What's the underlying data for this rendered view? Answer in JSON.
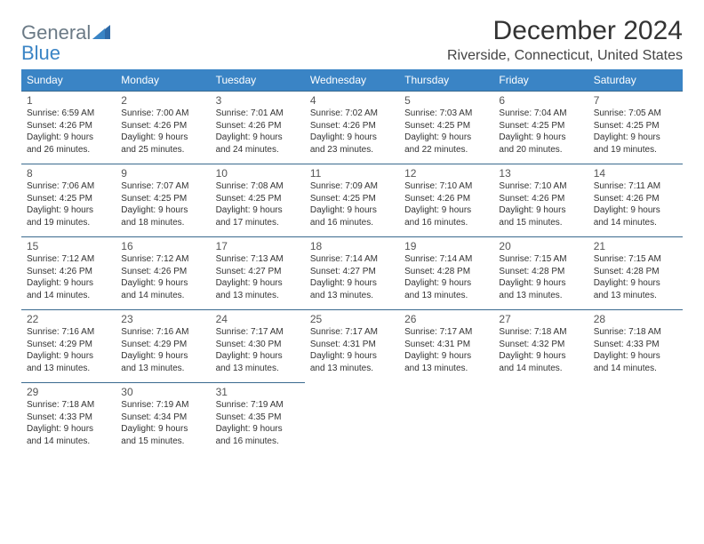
{
  "logo": {
    "text1": "General",
    "text2": "Blue"
  },
  "title": "December 2024",
  "location": "Riverside, Connecticut, United States",
  "colors": {
    "header_bg": "#3a84c5",
    "header_text": "#ffffff",
    "rule": "#3a6a8f",
    "logo_gray": "#6b7a86",
    "logo_blue": "#3a84c5"
  },
  "day_headers": [
    "Sunday",
    "Monday",
    "Tuesday",
    "Wednesday",
    "Thursday",
    "Friday",
    "Saturday"
  ],
  "weeks": [
    [
      {
        "n": "1",
        "sr": "Sunrise: 6:59 AM",
        "ss": "Sunset: 4:26 PM",
        "d1": "Daylight: 9 hours",
        "d2": "and 26 minutes."
      },
      {
        "n": "2",
        "sr": "Sunrise: 7:00 AM",
        "ss": "Sunset: 4:26 PM",
        "d1": "Daylight: 9 hours",
        "d2": "and 25 minutes."
      },
      {
        "n": "3",
        "sr": "Sunrise: 7:01 AM",
        "ss": "Sunset: 4:26 PM",
        "d1": "Daylight: 9 hours",
        "d2": "and 24 minutes."
      },
      {
        "n": "4",
        "sr": "Sunrise: 7:02 AM",
        "ss": "Sunset: 4:26 PM",
        "d1": "Daylight: 9 hours",
        "d2": "and 23 minutes."
      },
      {
        "n": "5",
        "sr": "Sunrise: 7:03 AM",
        "ss": "Sunset: 4:25 PM",
        "d1": "Daylight: 9 hours",
        "d2": "and 22 minutes."
      },
      {
        "n": "6",
        "sr": "Sunrise: 7:04 AM",
        "ss": "Sunset: 4:25 PM",
        "d1": "Daylight: 9 hours",
        "d2": "and 20 minutes."
      },
      {
        "n": "7",
        "sr": "Sunrise: 7:05 AM",
        "ss": "Sunset: 4:25 PM",
        "d1": "Daylight: 9 hours",
        "d2": "and 19 minutes."
      }
    ],
    [
      {
        "n": "8",
        "sr": "Sunrise: 7:06 AM",
        "ss": "Sunset: 4:25 PM",
        "d1": "Daylight: 9 hours",
        "d2": "and 19 minutes."
      },
      {
        "n": "9",
        "sr": "Sunrise: 7:07 AM",
        "ss": "Sunset: 4:25 PM",
        "d1": "Daylight: 9 hours",
        "d2": "and 18 minutes."
      },
      {
        "n": "10",
        "sr": "Sunrise: 7:08 AM",
        "ss": "Sunset: 4:25 PM",
        "d1": "Daylight: 9 hours",
        "d2": "and 17 minutes."
      },
      {
        "n": "11",
        "sr": "Sunrise: 7:09 AM",
        "ss": "Sunset: 4:25 PM",
        "d1": "Daylight: 9 hours",
        "d2": "and 16 minutes."
      },
      {
        "n": "12",
        "sr": "Sunrise: 7:10 AM",
        "ss": "Sunset: 4:26 PM",
        "d1": "Daylight: 9 hours",
        "d2": "and 16 minutes."
      },
      {
        "n": "13",
        "sr": "Sunrise: 7:10 AM",
        "ss": "Sunset: 4:26 PM",
        "d1": "Daylight: 9 hours",
        "d2": "and 15 minutes."
      },
      {
        "n": "14",
        "sr": "Sunrise: 7:11 AM",
        "ss": "Sunset: 4:26 PM",
        "d1": "Daylight: 9 hours",
        "d2": "and 14 minutes."
      }
    ],
    [
      {
        "n": "15",
        "sr": "Sunrise: 7:12 AM",
        "ss": "Sunset: 4:26 PM",
        "d1": "Daylight: 9 hours",
        "d2": "and 14 minutes."
      },
      {
        "n": "16",
        "sr": "Sunrise: 7:12 AM",
        "ss": "Sunset: 4:26 PM",
        "d1": "Daylight: 9 hours",
        "d2": "and 14 minutes."
      },
      {
        "n": "17",
        "sr": "Sunrise: 7:13 AM",
        "ss": "Sunset: 4:27 PM",
        "d1": "Daylight: 9 hours",
        "d2": "and 13 minutes."
      },
      {
        "n": "18",
        "sr": "Sunrise: 7:14 AM",
        "ss": "Sunset: 4:27 PM",
        "d1": "Daylight: 9 hours",
        "d2": "and 13 minutes."
      },
      {
        "n": "19",
        "sr": "Sunrise: 7:14 AM",
        "ss": "Sunset: 4:28 PM",
        "d1": "Daylight: 9 hours",
        "d2": "and 13 minutes."
      },
      {
        "n": "20",
        "sr": "Sunrise: 7:15 AM",
        "ss": "Sunset: 4:28 PM",
        "d1": "Daylight: 9 hours",
        "d2": "and 13 minutes."
      },
      {
        "n": "21",
        "sr": "Sunrise: 7:15 AM",
        "ss": "Sunset: 4:28 PM",
        "d1": "Daylight: 9 hours",
        "d2": "and 13 minutes."
      }
    ],
    [
      {
        "n": "22",
        "sr": "Sunrise: 7:16 AM",
        "ss": "Sunset: 4:29 PM",
        "d1": "Daylight: 9 hours",
        "d2": "and 13 minutes."
      },
      {
        "n": "23",
        "sr": "Sunrise: 7:16 AM",
        "ss": "Sunset: 4:29 PM",
        "d1": "Daylight: 9 hours",
        "d2": "and 13 minutes."
      },
      {
        "n": "24",
        "sr": "Sunrise: 7:17 AM",
        "ss": "Sunset: 4:30 PM",
        "d1": "Daylight: 9 hours",
        "d2": "and 13 minutes."
      },
      {
        "n": "25",
        "sr": "Sunrise: 7:17 AM",
        "ss": "Sunset: 4:31 PM",
        "d1": "Daylight: 9 hours",
        "d2": "and 13 minutes."
      },
      {
        "n": "26",
        "sr": "Sunrise: 7:17 AM",
        "ss": "Sunset: 4:31 PM",
        "d1": "Daylight: 9 hours",
        "d2": "and 13 minutes."
      },
      {
        "n": "27",
        "sr": "Sunrise: 7:18 AM",
        "ss": "Sunset: 4:32 PM",
        "d1": "Daylight: 9 hours",
        "d2": "and 14 minutes."
      },
      {
        "n": "28",
        "sr": "Sunrise: 7:18 AM",
        "ss": "Sunset: 4:33 PM",
        "d1": "Daylight: 9 hours",
        "d2": "and 14 minutes."
      }
    ],
    [
      {
        "n": "29",
        "sr": "Sunrise: 7:18 AM",
        "ss": "Sunset: 4:33 PM",
        "d1": "Daylight: 9 hours",
        "d2": "and 14 minutes."
      },
      {
        "n": "30",
        "sr": "Sunrise: 7:19 AM",
        "ss": "Sunset: 4:34 PM",
        "d1": "Daylight: 9 hours",
        "d2": "and 15 minutes."
      },
      {
        "n": "31",
        "sr": "Sunrise: 7:19 AM",
        "ss": "Sunset: 4:35 PM",
        "d1": "Daylight: 9 hours",
        "d2": "and 16 minutes."
      },
      null,
      null,
      null,
      null
    ]
  ]
}
